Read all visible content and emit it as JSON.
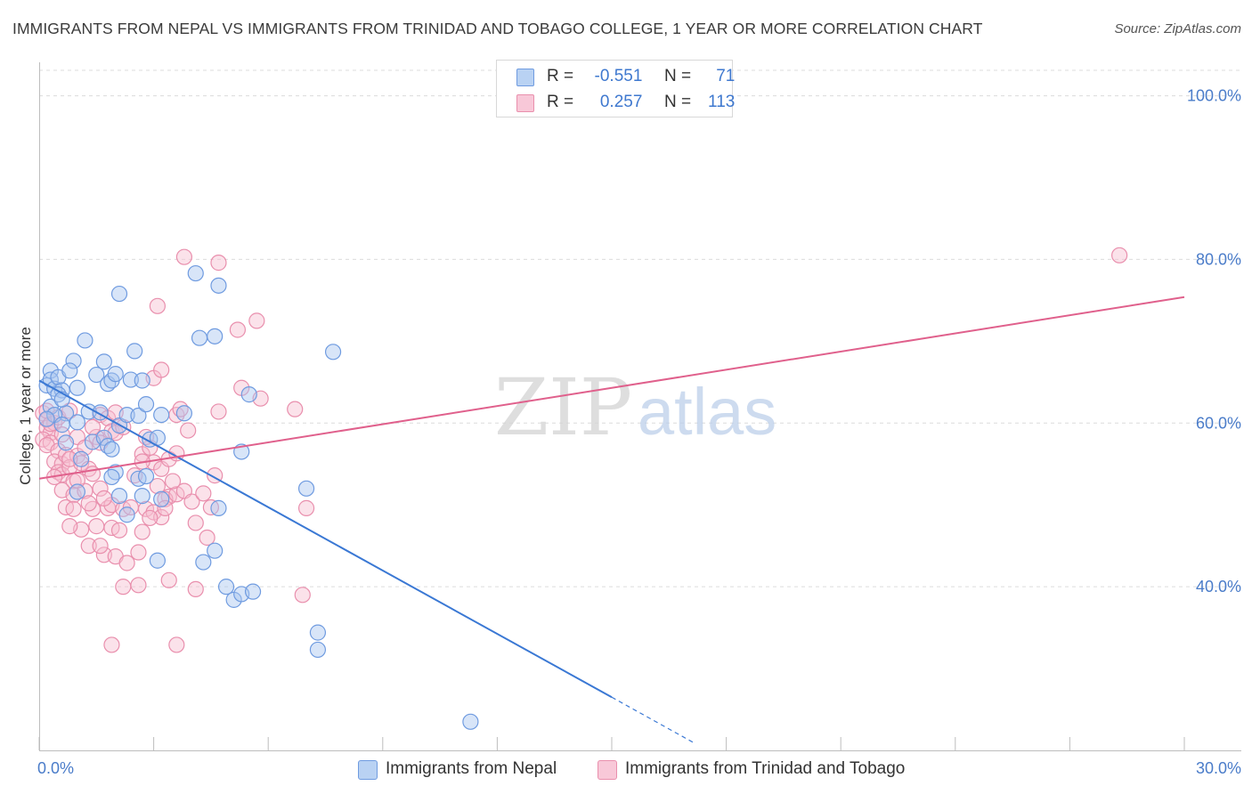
{
  "title": "IMMIGRANTS FROM NEPAL VS IMMIGRANTS FROM TRINIDAD AND TOBAGO COLLEGE, 1 YEAR OR MORE CORRELATION CHART",
  "source": "Source: ZipAtlas.com",
  "watermark": {
    "zip": "ZIP",
    "atlas": "atlas"
  },
  "legend": {
    "r_label": "R =",
    "n_label": "N =",
    "nepal": {
      "r": "-0.551",
      "n": "71"
    },
    "trinidad": {
      "r": "0.257",
      "n": "113"
    }
  },
  "chart_data": {
    "type": "scatter",
    "title": "IMMIGRANTS FROM NEPAL VS IMMIGRANTS FROM TRINIDAD AND TOBAGO COLLEGE, 1 YEAR OR MORE CORRELATION CHART",
    "xlabel": "",
    "ylabel": "College, 1 year or more",
    "xlim": [
      0,
      30
    ],
    "ylim": [
      20,
      103
    ],
    "x_tick_labels": {
      "min": "0.0%",
      "max": "30.0%"
    },
    "y_ticks": [
      {
        "value": 40,
        "label": "40.0%"
      },
      {
        "value": 60,
        "label": "60.0%"
      },
      {
        "value": 80,
        "label": "80.0%"
      },
      {
        "value": 100,
        "label": "100.0%"
      }
    ],
    "series": [
      {
        "name": "Immigrants from Nepal",
        "color": "#6f9be0",
        "fill": "#a9c6ef",
        "r": -0.551,
        "n": 71,
        "trend": {
          "x0": 0.0,
          "y0": 65.2,
          "x1": 15.0,
          "y1": 26.5,
          "dash_to_x": 17.2,
          "dash_to_y": 20.8
        },
        "points": [
          [
            0.2,
            64.6
          ],
          [
            0.3,
            66.4
          ],
          [
            0.3,
            65.3
          ],
          [
            0.4,
            64.2
          ],
          [
            0.5,
            65.6
          ],
          [
            0.6,
            64.0
          ],
          [
            0.3,
            62.0
          ],
          [
            0.5,
            63.5
          ],
          [
            0.7,
            61.2
          ],
          [
            0.4,
            61.0
          ],
          [
            0.2,
            60.5
          ],
          [
            0.6,
            59.8
          ],
          [
            0.9,
            67.6
          ],
          [
            0.8,
            66.4
          ],
          [
            1.0,
            64.3
          ],
          [
            1.2,
            70.1
          ],
          [
            1.0,
            60.1
          ],
          [
            1.3,
            61.4
          ],
          [
            1.5,
            65.9
          ],
          [
            1.6,
            61.3
          ],
          [
            1.7,
            67.5
          ],
          [
            1.8,
            64.8
          ],
          [
            1.9,
            65.2
          ],
          [
            2.0,
            66.0
          ],
          [
            2.1,
            59.7
          ],
          [
            2.3,
            61.0
          ],
          [
            2.4,
            65.3
          ],
          [
            2.5,
            68.8
          ],
          [
            2.6,
            60.9
          ],
          [
            2.7,
            65.2
          ],
          [
            2.8,
            62.3
          ],
          [
            2.1,
            75.8
          ],
          [
            3.2,
            61.0
          ],
          [
            3.8,
            61.2
          ],
          [
            4.1,
            78.3
          ],
          [
            4.2,
            70.4
          ],
          [
            4.6,
            70.6
          ],
          [
            4.7,
            76.8
          ],
          [
            0.7,
            57.6
          ],
          [
            1.1,
            55.6
          ],
          [
            1.4,
            57.7
          ],
          [
            1.7,
            58.2
          ],
          [
            1.8,
            57.2
          ],
          [
            1.9,
            56.8
          ],
          [
            2.0,
            54.0
          ],
          [
            1.9,
            53.4
          ],
          [
            2.1,
            51.1
          ],
          [
            2.6,
            53.2
          ],
          [
            2.7,
            51.1
          ],
          [
            2.8,
            53.5
          ],
          [
            2.9,
            58.0
          ],
          [
            3.1,
            58.2
          ],
          [
            3.2,
            50.7
          ],
          [
            2.3,
            48.8
          ],
          [
            3.1,
            43.2
          ],
          [
            4.3,
            43.0
          ],
          [
            4.6,
            44.4
          ],
          [
            4.7,
            49.6
          ],
          [
            4.9,
            40.0
          ],
          [
            5.1,
            38.4
          ],
          [
            5.3,
            39.1
          ],
          [
            5.6,
            39.4
          ],
          [
            5.5,
            63.5
          ],
          [
            5.3,
            56.5
          ],
          [
            7.0,
            52.0
          ],
          [
            7.7,
            68.7
          ],
          [
            7.3,
            34.4
          ],
          [
            7.3,
            32.3
          ],
          [
            11.3,
            23.5
          ],
          [
            1.0,
            51.6
          ],
          [
            0.6,
            62.9
          ]
        ]
      },
      {
        "name": "Immigrants from Trinidad and Tobago",
        "color": "#e98fad",
        "fill": "#f6bfd1",
        "r": 0.257,
        "n": 113,
        "trend": {
          "x0": 0.0,
          "y0": 53.2,
          "x1": 30.0,
          "y1": 75.4
        },
        "points": [
          [
            0.1,
            61.2
          ],
          [
            0.2,
            60.4
          ],
          [
            0.2,
            59.4
          ],
          [
            0.3,
            58.8
          ],
          [
            0.1,
            58.0
          ],
          [
            0.3,
            57.6
          ],
          [
            0.2,
            57.3
          ],
          [
            0.4,
            60.0
          ],
          [
            0.5,
            56.6
          ],
          [
            0.4,
            55.3
          ],
          [
            0.6,
            55.0
          ],
          [
            0.5,
            54.0
          ],
          [
            0.3,
            59.9
          ],
          [
            0.2,
            61.5
          ],
          [
            0.7,
            56.1
          ],
          [
            0.6,
            53.7
          ],
          [
            0.8,
            54.6
          ],
          [
            0.9,
            52.9
          ],
          [
            0.6,
            51.8
          ],
          [
            0.9,
            51.2
          ],
          [
            0.7,
            49.7
          ],
          [
            1.0,
            58.3
          ],
          [
            1.0,
            56.0
          ],
          [
            1.2,
            57.0
          ],
          [
            1.1,
            55.1
          ],
          [
            1.3,
            54.4
          ],
          [
            1.4,
            53.8
          ],
          [
            1.5,
            58.3
          ],
          [
            1.6,
            57.6
          ],
          [
            1.6,
            61.0
          ],
          [
            1.8,
            60.6
          ],
          [
            1.9,
            59.0
          ],
          [
            2.0,
            58.8
          ],
          [
            2.2,
            59.5
          ],
          [
            2.0,
            61.3
          ],
          [
            1.2,
            51.7
          ],
          [
            1.4,
            49.5
          ],
          [
            1.5,
            47.4
          ],
          [
            1.8,
            49.6
          ],
          [
            1.9,
            50.0
          ],
          [
            1.9,
            47.2
          ],
          [
            2.2,
            49.5
          ],
          [
            2.1,
            46.9
          ],
          [
            2.4,
            49.7
          ],
          [
            1.7,
            43.9
          ],
          [
            1.3,
            45.0
          ],
          [
            1.6,
            45.0
          ],
          [
            2.0,
            43.7
          ],
          [
            2.3,
            42.9
          ],
          [
            2.6,
            44.2
          ],
          [
            2.7,
            46.7
          ],
          [
            2.8,
            49.5
          ],
          [
            3.0,
            49.1
          ],
          [
            3.2,
            48.5
          ],
          [
            3.4,
            51.0
          ],
          [
            3.1,
            52.3
          ],
          [
            3.3,
            50.7
          ],
          [
            3.6,
            51.3
          ],
          [
            3.5,
            52.9
          ],
          [
            3.8,
            51.7
          ],
          [
            4.0,
            50.4
          ],
          [
            4.3,
            51.4
          ],
          [
            4.1,
            47.8
          ],
          [
            4.4,
            46.0
          ],
          [
            4.5,
            49.7
          ],
          [
            2.7,
            56.2
          ],
          [
            2.9,
            57.0
          ],
          [
            3.0,
            55.2
          ],
          [
            3.2,
            54.4
          ],
          [
            3.4,
            55.6
          ],
          [
            3.6,
            56.3
          ],
          [
            2.8,
            58.3
          ],
          [
            3.9,
            59.1
          ],
          [
            3.6,
            61.0
          ],
          [
            4.6,
            53.6
          ],
          [
            4.7,
            61.4
          ],
          [
            5.3,
            64.3
          ],
          [
            5.8,
            63.0
          ],
          [
            6.7,
            61.7
          ],
          [
            2.2,
            40.0
          ],
          [
            2.6,
            40.2
          ],
          [
            3.4,
            40.8
          ],
          [
            4.1,
            39.7
          ],
          [
            6.9,
            39.0
          ],
          [
            1.9,
            32.9
          ],
          [
            3.6,
            32.9
          ],
          [
            3.0,
            65.5
          ],
          [
            3.2,
            66.5
          ],
          [
            3.1,
            74.3
          ],
          [
            3.8,
            80.3
          ],
          [
            4.7,
            79.6
          ],
          [
            5.2,
            71.4
          ],
          [
            5.7,
            72.5
          ],
          [
            7.0,
            49.6
          ],
          [
            3.3,
            49.6
          ],
          [
            1.6,
            52.0
          ],
          [
            0.8,
            55.6
          ],
          [
            0.4,
            53.4
          ],
          [
            1.0,
            53.0
          ],
          [
            0.9,
            49.5
          ],
          [
            1.3,
            50.2
          ],
          [
            2.5,
            53.6
          ],
          [
            2.7,
            55.3
          ],
          [
            0.6,
            58.6
          ],
          [
            0.5,
            60.7
          ],
          [
            0.8,
            61.5
          ],
          [
            1.1,
            47.0
          ],
          [
            0.8,
            47.4
          ],
          [
            1.7,
            50.8
          ],
          [
            2.9,
            48.4
          ],
          [
            28.3,
            80.5
          ],
          [
            3.7,
            61.7
          ],
          [
            1.4,
            59.5
          ]
        ]
      }
    ]
  },
  "bottom_legend": {
    "nepal_label": "Immigrants from Nepal",
    "trinidad_label": "Immigrants from Trinidad and Tobago"
  }
}
